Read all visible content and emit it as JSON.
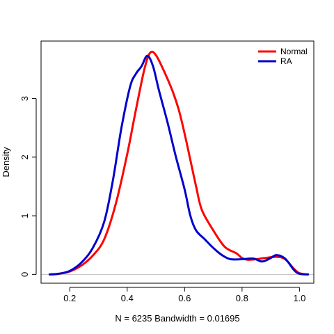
{
  "chart_data": {
    "type": "line",
    "title": "",
    "xlabel": "N = 6235   Bandwidth = 0.01695",
    "ylabel": "Density",
    "xlim": [
      0.1,
      1.05
    ],
    "ylim": [
      -0.15,
      3.98
    ],
    "xticks": [
      0.2,
      0.4,
      0.6,
      0.8,
      1.0
    ],
    "xtick_labels": [
      "0.2",
      "0.4",
      "0.6",
      "0.8",
      "1.0"
    ],
    "yticks": [
      0,
      1,
      2,
      3
    ],
    "ytick_labels": [
      "0",
      "1",
      "2",
      "3"
    ],
    "grid": false,
    "baseline": 0,
    "legend_position": "top-right",
    "series": [
      {
        "name": "Normal",
        "color": "#ff0000",
        "points": [
          [
            0.13,
            0.0
          ],
          [
            0.16,
            0.01
          ],
          [
            0.2,
            0.05
          ],
          [
            0.24,
            0.15
          ],
          [
            0.28,
            0.32
          ],
          [
            0.32,
            0.6
          ],
          [
            0.36,
            1.2
          ],
          [
            0.4,
            2.05
          ],
          [
            0.43,
            2.8
          ],
          [
            0.46,
            3.5
          ],
          [
            0.48,
            3.78
          ],
          [
            0.5,
            3.74
          ],
          [
            0.53,
            3.45
          ],
          [
            0.56,
            3.1
          ],
          [
            0.58,
            2.8
          ],
          [
            0.6,
            2.4
          ],
          [
            0.62,
            1.95
          ],
          [
            0.64,
            1.5
          ],
          [
            0.66,
            1.1
          ],
          [
            0.7,
            0.75
          ],
          [
            0.74,
            0.47
          ],
          [
            0.78,
            0.36
          ],
          [
            0.8,
            0.28
          ],
          [
            0.82,
            0.25
          ],
          [
            0.85,
            0.26
          ],
          [
            0.88,
            0.28
          ],
          [
            0.92,
            0.3
          ],
          [
            0.95,
            0.26
          ],
          [
            0.98,
            0.1
          ],
          [
            1.0,
            0.02
          ],
          [
            1.03,
            0.0
          ]
        ]
      },
      {
        "name": "RA",
        "color": "#0000cd",
        "points": [
          [
            0.13,
            0.0
          ],
          [
            0.16,
            0.01
          ],
          [
            0.2,
            0.06
          ],
          [
            0.24,
            0.2
          ],
          [
            0.28,
            0.45
          ],
          [
            0.32,
            0.9
          ],
          [
            0.35,
            1.6
          ],
          [
            0.38,
            2.5
          ],
          [
            0.41,
            3.2
          ],
          [
            0.43,
            3.42
          ],
          [
            0.45,
            3.55
          ],
          [
            0.47,
            3.73
          ],
          [
            0.49,
            3.55
          ],
          [
            0.51,
            3.15
          ],
          [
            0.54,
            2.6
          ],
          [
            0.57,
            2.0
          ],
          [
            0.6,
            1.45
          ],
          [
            0.62,
            1.0
          ],
          [
            0.64,
            0.75
          ],
          [
            0.67,
            0.6
          ],
          [
            0.7,
            0.45
          ],
          [
            0.73,
            0.33
          ],
          [
            0.76,
            0.26
          ],
          [
            0.8,
            0.26
          ],
          [
            0.84,
            0.27
          ],
          [
            0.87,
            0.22
          ],
          [
            0.9,
            0.28
          ],
          [
            0.92,
            0.33
          ],
          [
            0.95,
            0.27
          ],
          [
            0.98,
            0.08
          ],
          [
            1.0,
            0.01
          ],
          [
            1.03,
            0.0
          ]
        ]
      }
    ]
  }
}
